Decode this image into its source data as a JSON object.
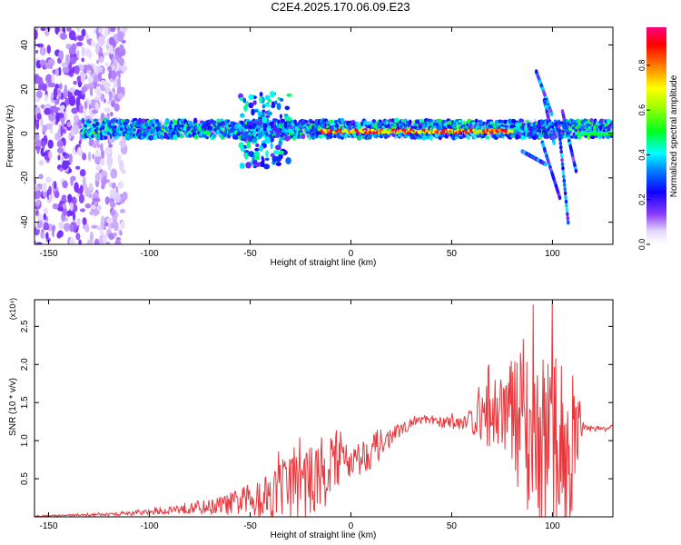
{
  "title": "C2E4.2025.170.06.09.E23",
  "chart_data": [
    {
      "type": "heatmap",
      "title": "C2E4.2025.170.06.09.E23",
      "xlabel": "Height of straight line (km)",
      "ylabel": "Frequency (Hz)",
      "xlim": [
        -157,
        130
      ],
      "ylim": [
        -50,
        48
      ],
      "x_ticks": [
        -150,
        -100,
        -50,
        0,
        50,
        100
      ],
      "y_ticks": [
        -40,
        -20,
        0,
        20,
        40
      ],
      "colorbar": {
        "label": "Normalized spectral amplitude",
        "range": [
          0,
          0.97
        ],
        "ticks": [
          0.0,
          0.2,
          0.4,
          0.6,
          0.8
        ],
        "colormap": [
          "#e6d9ff",
          "#6a00ff",
          "#0000ff",
          "#00ffff",
          "#00ff00",
          "#ffff00",
          "#ff8000",
          "#ff0000",
          "#ff0080"
        ]
      },
      "features": [
        {
          "name": "broadband noise",
          "x_range": [
            -157,
            -120
          ],
          "freq_range": [
            -50,
            48
          ],
          "amplitude": 0.05
        },
        {
          "name": "main band",
          "x_range": [
            -133,
            130
          ],
          "center_freq_hz": 2,
          "amplitude": [
            0.25,
            0.75
          ]
        },
        {
          "name": "strong segment",
          "x_range": [
            -15,
            80
          ],
          "center_freq_hz": 1,
          "amplitude": 0.95
        },
        {
          "name": "burst",
          "x_range": [
            -55,
            -30
          ],
          "freq_range": [
            -15,
            18
          ],
          "amplitude": 0.35
        },
        {
          "name": "dispersed arcs",
          "x_range": [
            80,
            115
          ],
          "freq_range": [
            -42,
            28
          ],
          "amplitude": 0.3
        }
      ]
    },
    {
      "type": "line",
      "xlabel": "Height of straight line (km)",
      "ylabel": "SNR (10 * v/v)",
      "y_multiplier": "(x10⁴)",
      "xlim": [
        -157,
        130
      ],
      "ylim": [
        0,
        2.85
      ],
      "x_ticks": [
        -150,
        -100,
        -50,
        0,
        50,
        100
      ],
      "y_ticks": [
        0.5,
        1.0,
        1.5,
        2.0,
        2.5
      ],
      "series": [
        {
          "color": "#e8383d",
          "x": [
            -157,
            -140,
            -120,
            -100,
            -90,
            -80,
            -70,
            -60,
            -50,
            -45,
            -40,
            -35,
            -30,
            -25,
            -20,
            -15,
            -10,
            -5,
            0,
            5,
            10,
            15,
            20,
            25,
            30,
            35,
            40,
            45,
            50,
            55,
            60,
            65,
            70,
            75,
            80,
            85,
            90,
            95,
            100,
            105,
            110,
            115,
            120,
            130
          ],
          "y": [
            0.01,
            0.02,
            0.03,
            0.06,
            0.09,
            0.12,
            0.13,
            0.17,
            0.22,
            0.27,
            0.3,
            0.35,
            0.42,
            0.55,
            0.45,
            0.55,
            0.7,
            0.8,
            0.72,
            0.78,
            0.88,
            0.95,
            1.05,
            1.15,
            1.22,
            1.28,
            1.25,
            1.24,
            1.23,
            1.25,
            1.28,
            1.3,
            1.35,
            1.4,
            1.3,
            1.2,
            1.05,
            1.0,
            0.95,
            0.9,
            0.9,
            1.2,
            1.15,
            1.17
          ],
          "fluct": [
            0.01,
            0.01,
            0.02,
            0.04,
            0.06,
            0.08,
            0.1,
            0.15,
            0.22,
            0.3,
            0.35,
            0.4,
            0.45,
            0.6,
            0.45,
            0.5,
            0.45,
            0.35,
            0.2,
            0.25,
            0.25,
            0.2,
            0.12,
            0.08,
            0.06,
            0.06,
            0.06,
            0.07,
            0.08,
            0.1,
            0.2,
            0.35,
            0.5,
            0.6,
            0.8,
            0.95,
            1.1,
            1.2,
            1.2,
            1.2,
            1.1,
            0.06,
            0.04,
            0.04
          ]
        }
      ]
    }
  ]
}
